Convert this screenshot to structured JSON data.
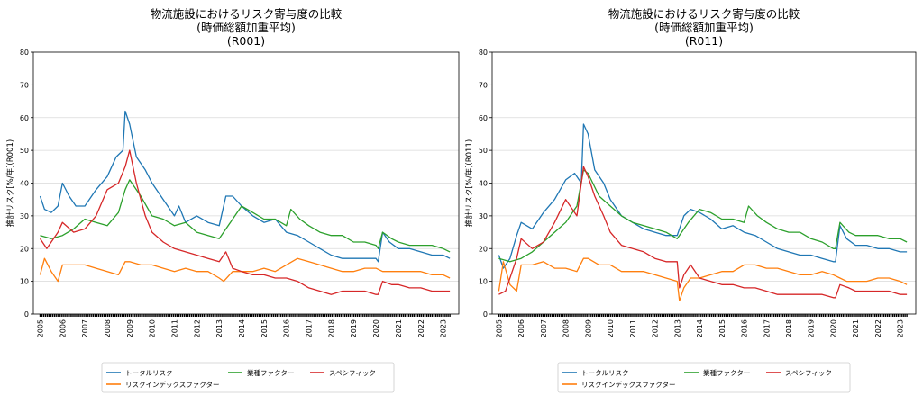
{
  "colors": {
    "total": "#1f77b4",
    "index": "#ff7f0e",
    "industry": "#2ca02c",
    "specific": "#d62728"
  },
  "chart_data": [
    {
      "type": "line",
      "title_lines": [
        "物流施設におけるリスク寄与度の比較",
        "(時価総額加重平均)",
        "(R001)"
      ],
      "xlabel": "",
      "ylabel": "推計リスク[%/年](R001)",
      "xlim": [
        2004.7,
        2023.7
      ],
      "ylim": [
        0,
        80
      ],
      "yticks": [
        0,
        10,
        20,
        30,
        40,
        50,
        60,
        70,
        80
      ],
      "xticks": [
        "2005",
        "2006",
        "2007",
        "2008",
        "2009",
        "2010",
        "2011",
        "2012",
        "2013",
        "2014",
        "2015",
        "2016",
        "2017",
        "2018",
        "2019",
        "2020",
        "2021",
        "2022",
        "2023"
      ],
      "grid": "horizontal",
      "legend": {
        "placement": "bottom-center",
        "entries": [
          "トータルリスク",
          "リスクインデックスファクター",
          "業種ファクター",
          "スペシフィック"
        ]
      },
      "series": [
        {
          "name": "トータルリスク",
          "key": "total",
          "x": [
            2005.0,
            2005.2,
            2005.5,
            2005.8,
            2006.0,
            2006.3,
            2006.6,
            2007.0,
            2007.5,
            2008.0,
            2008.4,
            2008.7,
            2008.8,
            2009.0,
            2009.3,
            2009.7,
            2010.0,
            2010.5,
            2011.0,
            2011.2,
            2011.5,
            2012.0,
            2012.5,
            2013.0,
            2013.3,
            2013.6,
            2014.0,
            2014.5,
            2015.0,
            2015.5,
            2016.0,
            2016.5,
            2017.0,
            2017.5,
            2018.0,
            2018.5,
            2019.0,
            2019.5,
            2020.0,
            2020.1,
            2020.3,
            2020.6,
            2021.0,
            2021.5,
            2022.0,
            2022.5,
            2023.0,
            2023.3
          ],
          "y": [
            36,
            32,
            31,
            33,
            40,
            36,
            33,
            33,
            38,
            42,
            48,
            50,
            62,
            58,
            48,
            44,
            40,
            35,
            30,
            33,
            28,
            30,
            28,
            27,
            36,
            36,
            33,
            30,
            28,
            29,
            25,
            24,
            22,
            20,
            18,
            17,
            17,
            17,
            17,
            16,
            25,
            22,
            20,
            20,
            19,
            18,
            18,
            17
          ]
        },
        {
          "name": "リスクインデックスファクター",
          "key": "index",
          "x": [
            2005.0,
            2005.2,
            2005.5,
            2005.8,
            2006.0,
            2006.5,
            2007.0,
            2007.5,
            2008.0,
            2008.5,
            2008.8,
            2009.0,
            2009.5,
            2010.0,
            2010.5,
            2011.0,
            2011.5,
            2012.0,
            2012.5,
            2013.0,
            2013.2,
            2013.6,
            2014.0,
            2014.5,
            2015.0,
            2015.5,
            2016.0,
            2016.5,
            2017.0,
            2017.5,
            2018.0,
            2018.5,
            2019.0,
            2019.5,
            2020.0,
            2020.3,
            2020.6,
            2021.0,
            2021.5,
            2022.0,
            2022.5,
            2023.0,
            2023.3
          ],
          "y": [
            12,
            17,
            13,
            10,
            15,
            15,
            15,
            14,
            13,
            12,
            16,
            16,
            15,
            15,
            14,
            13,
            14,
            13,
            13,
            11,
            10,
            13,
            13,
            13,
            14,
            13,
            15,
            17,
            16,
            15,
            14,
            13,
            13,
            14,
            14,
            13,
            13,
            13,
            13,
            13,
            12,
            12,
            11
          ]
        },
        {
          "name": "業種ファクター",
          "key": "industry",
          "x": [
            2005.0,
            2005.5,
            2006.0,
            2006.5,
            2007.0,
            2007.5,
            2008.0,
            2008.5,
            2008.8,
            2009.0,
            2009.5,
            2010.0,
            2010.5,
            2011.0,
            2011.5,
            2012.0,
            2012.5,
            2013.0,
            2013.5,
            2014.0,
            2014.5,
            2015.0,
            2015.5,
            2016.0,
            2016.2,
            2016.6,
            2017.0,
            2017.5,
            2018.0,
            2018.5,
            2019.0,
            2019.5,
            2020.0,
            2020.1,
            2020.3,
            2020.7,
            2021.0,
            2021.5,
            2022.0,
            2022.5,
            2023.0,
            2023.3
          ],
          "y": [
            24,
            23,
            24,
            26,
            29,
            28,
            27,
            31,
            38,
            41,
            36,
            30,
            29,
            27,
            28,
            25,
            24,
            23,
            28,
            33,
            31,
            29,
            29,
            27,
            32,
            29,
            27,
            25,
            24,
            24,
            22,
            22,
            21,
            20,
            25,
            23,
            22,
            21,
            21,
            21,
            20,
            19
          ]
        },
        {
          "name": "スペシフィック",
          "key": "specific",
          "x": [
            2005.0,
            2005.3,
            2005.8,
            2006.0,
            2006.5,
            2007.0,
            2007.5,
            2008.0,
            2008.5,
            2008.8,
            2009.0,
            2009.3,
            2009.7,
            2010.0,
            2010.5,
            2011.0,
            2011.5,
            2012.0,
            2012.5,
            2013.0,
            2013.3,
            2013.6,
            2014.0,
            2014.5,
            2015.0,
            2015.5,
            2016.0,
            2016.5,
            2017.0,
            2017.5,
            2018.0,
            2018.5,
            2019.0,
            2019.5,
            2020.0,
            2020.1,
            2020.3,
            2020.7,
            2021.0,
            2021.5,
            2022.0,
            2022.5,
            2023.0,
            2023.3
          ],
          "y": [
            23,
            20,
            25,
            28,
            25,
            26,
            30,
            38,
            40,
            45,
            50,
            40,
            30,
            25,
            22,
            20,
            19,
            18,
            17,
            16,
            19,
            14,
            13,
            12,
            12,
            11,
            11,
            10,
            8,
            7,
            6,
            7,
            7,
            7,
            6,
            6,
            10,
            9,
            9,
            8,
            8,
            7,
            7,
            7
          ]
        }
      ]
    },
    {
      "type": "line",
      "title_lines": [
        "物流施設におけるリスク寄与度の比較",
        "(時価総額加重平均)",
        "(R011)"
      ],
      "xlabel": "",
      "ylabel": "推計リスク[%/年](R011)",
      "xlim": [
        2004.7,
        2023.7
      ],
      "ylim": [
        0,
        80
      ],
      "yticks": [
        0,
        10,
        20,
        30,
        40,
        50,
        60,
        70,
        80
      ],
      "xticks": [
        "2005",
        "2006",
        "2007",
        "2008",
        "2009",
        "2010",
        "2011",
        "2012",
        "2013",
        "2014",
        "2015",
        "2016",
        "2017",
        "2018",
        "2019",
        "2020",
        "2021",
        "2022",
        "2023"
      ],
      "grid": "horizontal",
      "legend": {
        "placement": "bottom-center",
        "entries": [
          "トータルリスク",
          "リスクインデックスファクター",
          "業種ファクター",
          "スペシフィック"
        ]
      },
      "series": [
        {
          "name": "トータルリスク",
          "key": "total",
          "x": [
            2005.0,
            2005.2,
            2005.5,
            2005.8,
            2006.0,
            2006.5,
            2007.0,
            2007.5,
            2008.0,
            2008.4,
            2008.7,
            2008.8,
            2009.0,
            2009.3,
            2009.7,
            2010.0,
            2010.5,
            2011.0,
            2011.5,
            2012.0,
            2012.5,
            2013.0,
            2013.3,
            2013.6,
            2014.0,
            2014.5,
            2015.0,
            2015.5,
            2016.0,
            2016.5,
            2017.0,
            2017.5,
            2018.0,
            2018.5,
            2019.0,
            2019.5,
            2020.0,
            2020.1,
            2020.3,
            2020.6,
            2021.0,
            2021.5,
            2022.0,
            2022.5,
            2023.0,
            2023.3
          ],
          "y": [
            18,
            14,
            17,
            24,
            28,
            26,
            31,
            35,
            41,
            43,
            40,
            58,
            55,
            44,
            40,
            35,
            30,
            28,
            26,
            25,
            24,
            24,
            30,
            32,
            31,
            29,
            26,
            27,
            25,
            24,
            22,
            20,
            19,
            18,
            18,
            17,
            16,
            16,
            27,
            23,
            21,
            21,
            20,
            20,
            19,
            19
          ]
        },
        {
          "name": "リスクインデックスファクター",
          "key": "index",
          "x": [
            2005.0,
            2005.2,
            2005.5,
            2005.8,
            2006.0,
            2006.5,
            2007.0,
            2007.5,
            2008.0,
            2008.5,
            2008.8,
            2009.0,
            2009.5,
            2010.0,
            2010.5,
            2011.0,
            2011.5,
            2012.0,
            2012.5,
            2013.0,
            2013.1,
            2013.3,
            2013.6,
            2014.0,
            2014.5,
            2015.0,
            2015.5,
            2016.0,
            2016.5,
            2017.0,
            2017.5,
            2018.0,
            2018.5,
            2019.0,
            2019.5,
            2020.0,
            2020.3,
            2020.6,
            2021.0,
            2021.5,
            2022.0,
            2022.5,
            2023.0,
            2023.3
          ],
          "y": [
            7,
            16,
            9,
            7,
            15,
            15,
            16,
            14,
            14,
            13,
            17,
            17,
            15,
            15,
            13,
            13,
            13,
            12,
            11,
            10,
            4,
            8,
            11,
            11,
            12,
            13,
            13,
            15,
            15,
            14,
            14,
            13,
            12,
            12,
            13,
            12,
            11,
            10,
            10,
            10,
            11,
            11,
            10,
            9
          ]
        },
        {
          "name": "業種ファクター",
          "key": "industry",
          "x": [
            2005.0,
            2005.5,
            2006.0,
            2006.5,
            2007.0,
            2007.5,
            2008.0,
            2008.5,
            2008.8,
            2009.0,
            2009.5,
            2010.0,
            2010.5,
            2011.0,
            2011.5,
            2012.0,
            2012.5,
            2013.0,
            2013.5,
            2014.0,
            2014.5,
            2015.0,
            2015.5,
            2016.0,
            2016.2,
            2016.6,
            2017.0,
            2017.5,
            2018.0,
            2018.5,
            2019.0,
            2019.5,
            2020.0,
            2020.1,
            2020.3,
            2020.7,
            2021.0,
            2021.5,
            2022.0,
            2022.5,
            2023.0,
            2023.3
          ],
          "y": [
            17,
            16,
            17,
            19,
            22,
            25,
            28,
            33,
            44,
            43,
            36,
            33,
            30,
            28,
            27,
            26,
            25,
            23,
            28,
            32,
            31,
            29,
            29,
            28,
            33,
            30,
            28,
            26,
            25,
            25,
            23,
            22,
            20,
            20,
            28,
            25,
            24,
            24,
            24,
            23,
            23,
            22
          ]
        },
        {
          "name": "スペシフィック",
          "key": "specific",
          "x": [
            2005.0,
            2005.3,
            2005.8,
            2006.0,
            2006.5,
            2007.0,
            2007.5,
            2008.0,
            2008.5,
            2008.8,
            2009.0,
            2009.3,
            2009.7,
            2010.0,
            2010.5,
            2011.0,
            2011.5,
            2012.0,
            2012.5,
            2013.0,
            2013.1,
            2013.3,
            2013.6,
            2014.0,
            2014.5,
            2015.0,
            2015.5,
            2016.0,
            2016.5,
            2017.0,
            2017.5,
            2018.0,
            2018.5,
            2019.0,
            2019.5,
            2020.0,
            2020.1,
            2020.3,
            2020.7,
            2021.0,
            2021.5,
            2022.0,
            2022.5,
            2023.0,
            2023.3
          ],
          "y": [
            6,
            7,
            17,
            23,
            20,
            22,
            28,
            35,
            30,
            45,
            42,
            36,
            30,
            25,
            21,
            20,
            19,
            17,
            16,
            16,
            8,
            12,
            15,
            11,
            10,
            9,
            9,
            8,
            8,
            7,
            6,
            6,
            6,
            6,
            6,
            5,
            5,
            9,
            8,
            7,
            7,
            7,
            7,
            6,
            6
          ]
        }
      ]
    }
  ]
}
